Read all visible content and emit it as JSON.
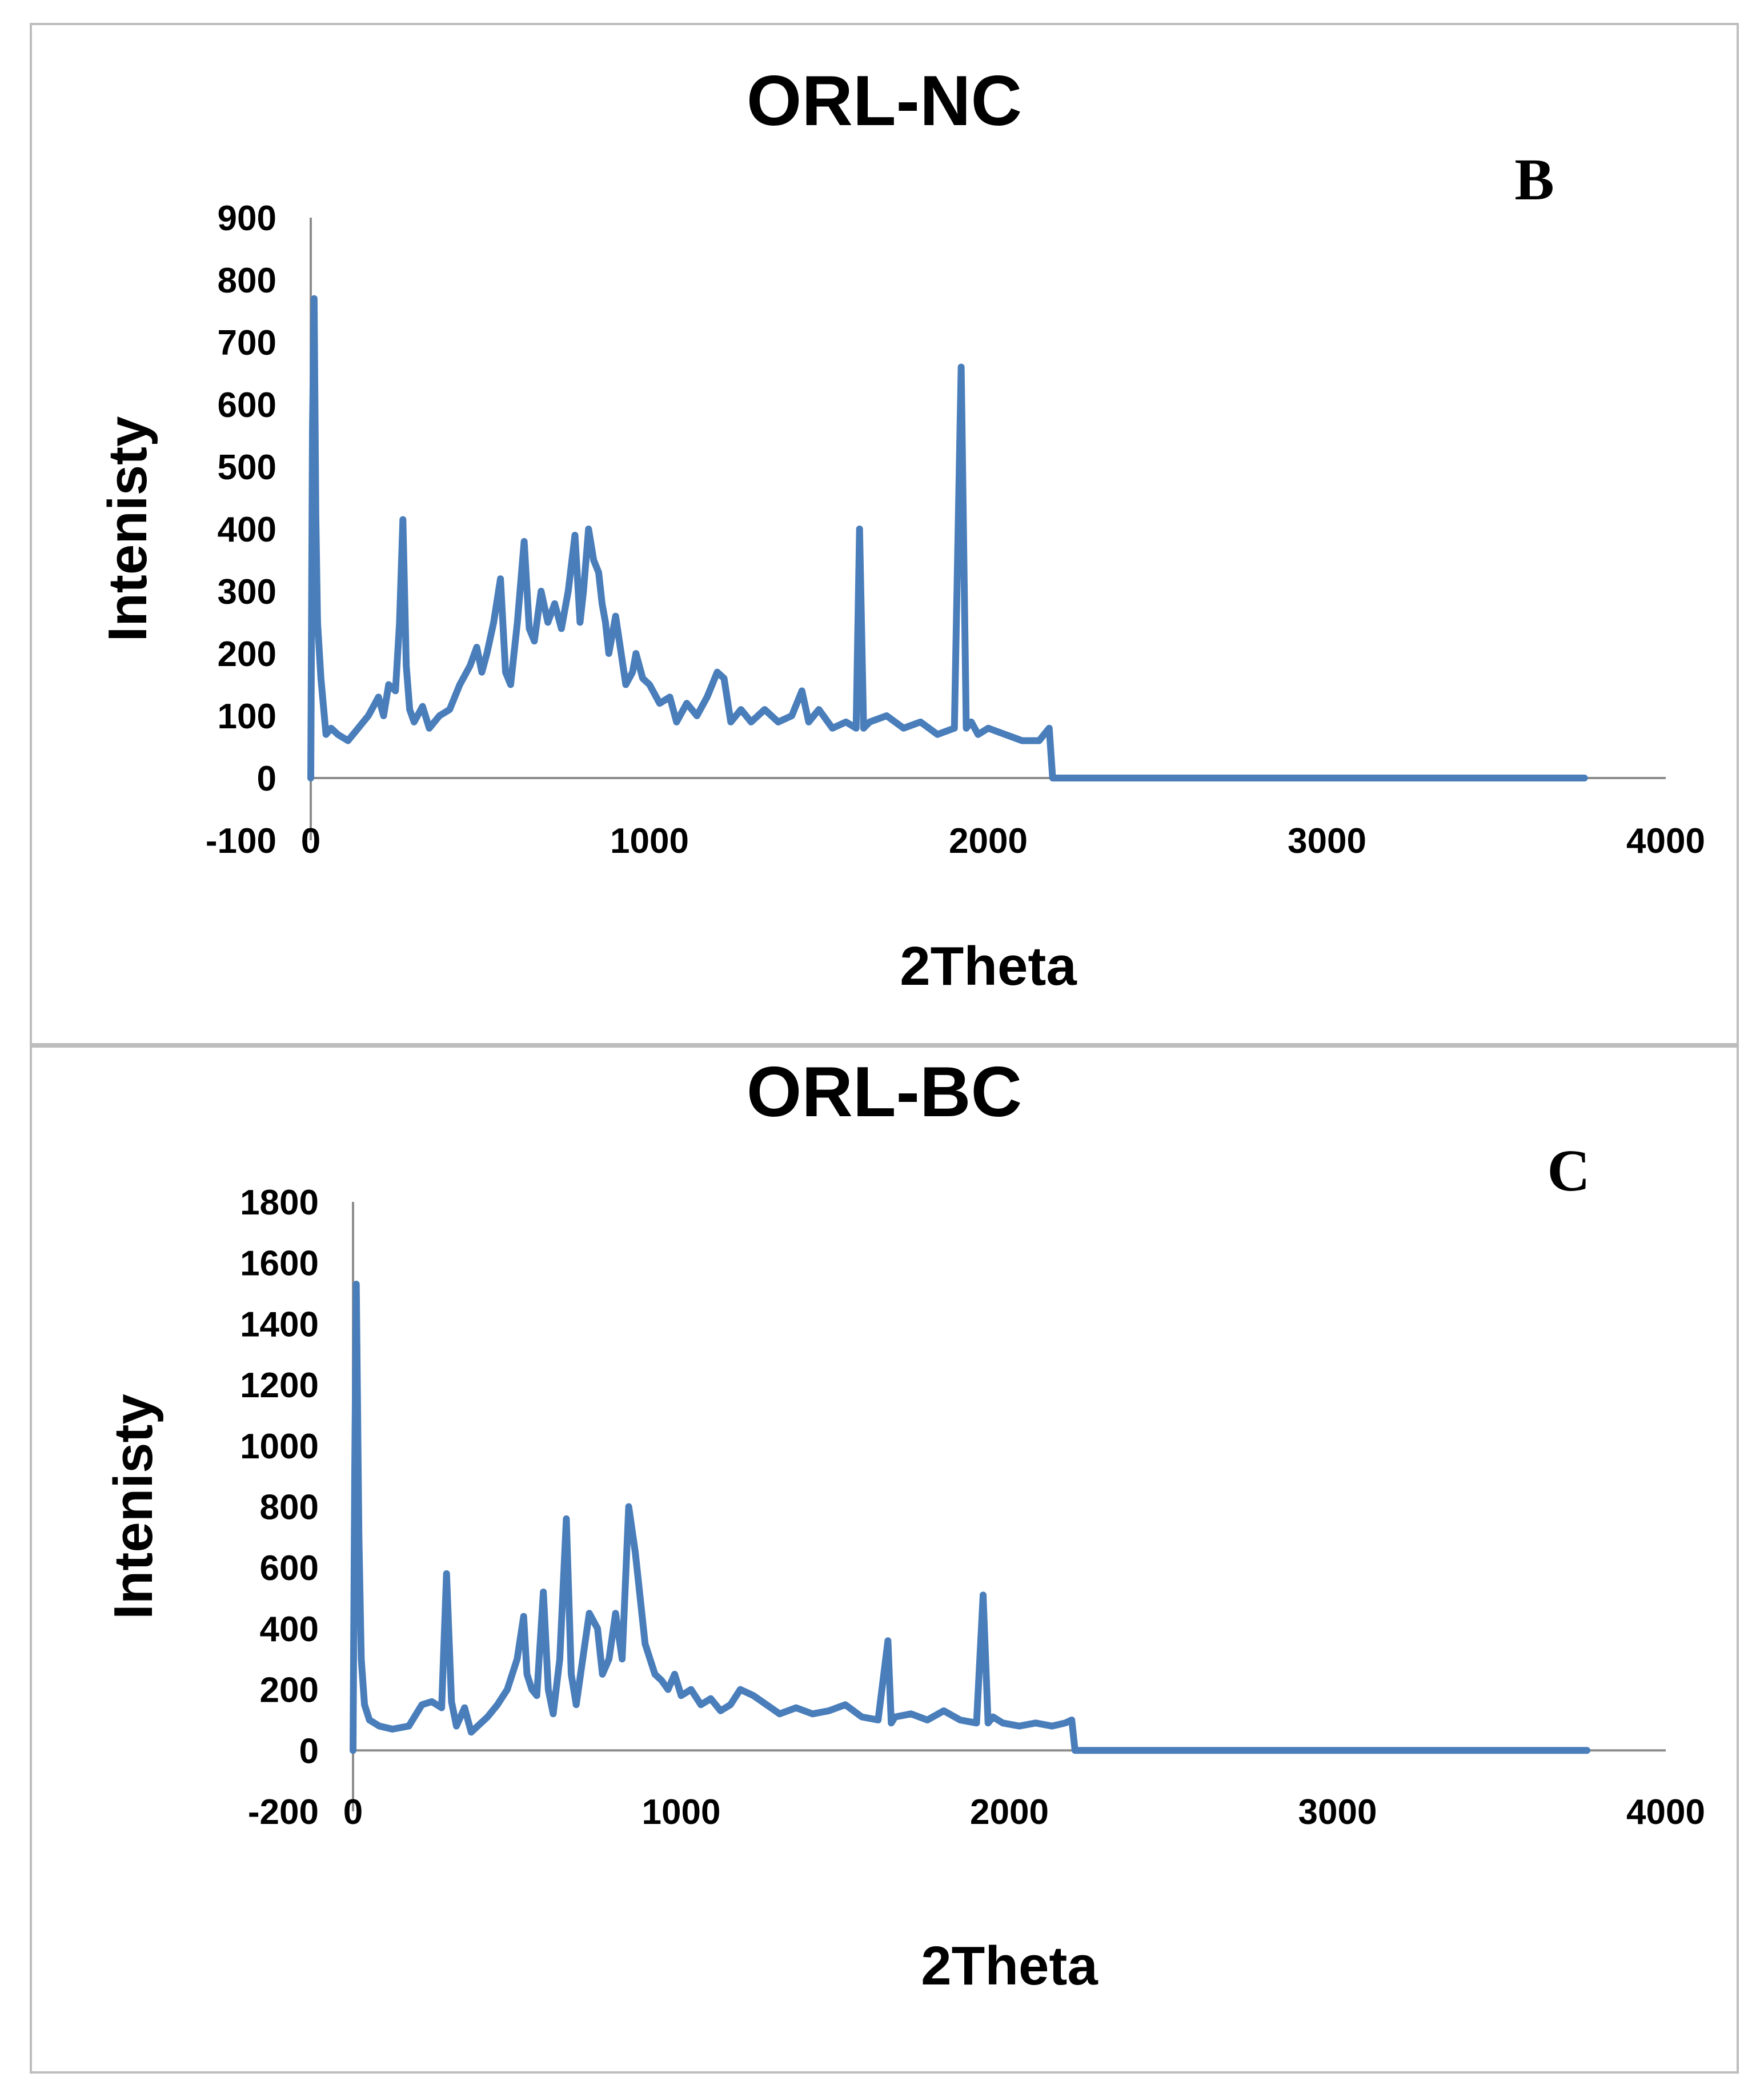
{
  "chart_data": [
    {
      "type": "line",
      "title": "ORL-NC",
      "panel_label": "B",
      "xlabel": "2Theta",
      "ylabel": "Intenisty",
      "xlim": [
        0,
        4000
      ],
      "ylim": [
        -100,
        900
      ],
      "x_ticks": [
        "0",
        "1000",
        "2000",
        "3000",
        "4000"
      ],
      "y_ticks": [
        "900",
        "800",
        "700",
        "600",
        "500",
        "400",
        "300",
        "200",
        "100",
        "0",
        "-100"
      ],
      "color": "#4a7ebb",
      "series": [
        {
          "name": "ORL-NC",
          "x": [
            0,
            5,
            10,
            15,
            20,
            30,
            45,
            60,
            80,
            110,
            140,
            170,
            200,
            215,
            230,
            250,
            262,
            272,
            282,
            292,
            305,
            330,
            350,
            380,
            410,
            440,
            470,
            490,
            505,
            520,
            540,
            560,
            575,
            590,
            610,
            630,
            645,
            660,
            680,
            700,
            720,
            740,
            760,
            780,
            795,
            805,
            820,
            835,
            850,
            860,
            870,
            880,
            900,
            930,
            950,
            960,
            980,
            1000,
            1030,
            1060,
            1080,
            1110,
            1140,
            1170,
            1200,
            1220,
            1240,
            1270,
            1300,
            1340,
            1380,
            1420,
            1450,
            1470,
            1500,
            1540,
            1580,
            1610,
            1620,
            1632,
            1650,
            1700,
            1750,
            1800,
            1850,
            1900,
            1920,
            1935,
            1950,
            1970,
            2000,
            2050,
            2100,
            2150,
            2180,
            2190,
            2200,
            2300,
            2600,
            3000,
            3400,
            3760
          ],
          "y": [
            0,
            560,
            770,
            420,
            250,
            160,
            70,
            80,
            70,
            60,
            80,
            100,
            130,
            100,
            150,
            140,
            250,
            415,
            180,
            110,
            90,
            115,
            80,
            100,
            110,
            150,
            180,
            210,
            170,
            200,
            250,
            320,
            170,
            150,
            250,
            380,
            240,
            220,
            300,
            250,
            280,
            240,
            300,
            390,
            250,
            300,
            400,
            350,
            330,
            280,
            250,
            200,
            260,
            150,
            170,
            200,
            160,
            150,
            120,
            130,
            90,
            120,
            100,
            130,
            170,
            160,
            90,
            110,
            90,
            110,
            90,
            100,
            140,
            90,
            110,
            80,
            90,
            80,
            400,
            80,
            90,
            100,
            80,
            90,
            70,
            80,
            660,
            80,
            90,
            70,
            80,
            70,
            60,
            60,
            80,
            0,
            0,
            0,
            0,
            0,
            0,
            0
          ]
        }
      ]
    },
    {
      "type": "line",
      "title": "ORL-BC",
      "panel_label": "C",
      "xlabel": "2Theta",
      "ylabel": "Intenisty",
      "xlim": [
        0,
        4000
      ],
      "ylim": [
        -200,
        1800
      ],
      "x_ticks": [
        "0",
        "1000",
        "2000",
        "3000",
        "4000"
      ],
      "y_ticks": [
        "1800",
        "1600",
        "1400",
        "1200",
        "1000",
        "800",
        "600",
        "400",
        "200",
        "0",
        "-200"
      ],
      "color": "#4a7ebb",
      "series": [
        {
          "name": "ORL-BC",
          "x": [
            0,
            5,
            10,
            18,
            25,
            35,
            50,
            80,
            120,
            170,
            210,
            240,
            270,
            285,
            300,
            315,
            340,
            360,
            380,
            410,
            440,
            470,
            500,
            520,
            530,
            545,
            560,
            580,
            595,
            610,
            630,
            650,
            665,
            680,
            700,
            720,
            745,
            760,
            780,
            800,
            820,
            840,
            860,
            875,
            890,
            905,
            920,
            940,
            960,
            980,
            1000,
            1030,
            1060,
            1090,
            1120,
            1150,
            1180,
            1220,
            1260,
            1300,
            1350,
            1400,
            1450,
            1500,
            1550,
            1600,
            1630,
            1640,
            1652,
            1700,
            1750,
            1800,
            1850,
            1900,
            1920,
            1935,
            1950,
            1980,
            2030,
            2080,
            2130,
            2170,
            2190,
            2200,
            2300,
            2600,
            3000,
            3400,
            3760
          ],
          "y": [
            0,
            900,
            1530,
            700,
            300,
            150,
            100,
            80,
            70,
            80,
            150,
            160,
            140,
            580,
            160,
            80,
            140,
            60,
            80,
            110,
            150,
            200,
            300,
            440,
            250,
            200,
            180,
            520,
            200,
            120,
            300,
            760,
            250,
            150,
            300,
            450,
            400,
            250,
            300,
            450,
            300,
            800,
            650,
            500,
            350,
            300,
            250,
            230,
            200,
            250,
            180,
            200,
            150,
            170,
            130,
            150,
            200,
            180,
            150,
            120,
            140,
            120,
            130,
            150,
            110,
            100,
            360,
            90,
            110,
            120,
            100,
            130,
            100,
            90,
            510,
            90,
            110,
            90,
            80,
            90,
            80,
            90,
            100,
            0,
            0,
            0,
            0,
            0,
            0
          ]
        }
      ]
    }
  ]
}
